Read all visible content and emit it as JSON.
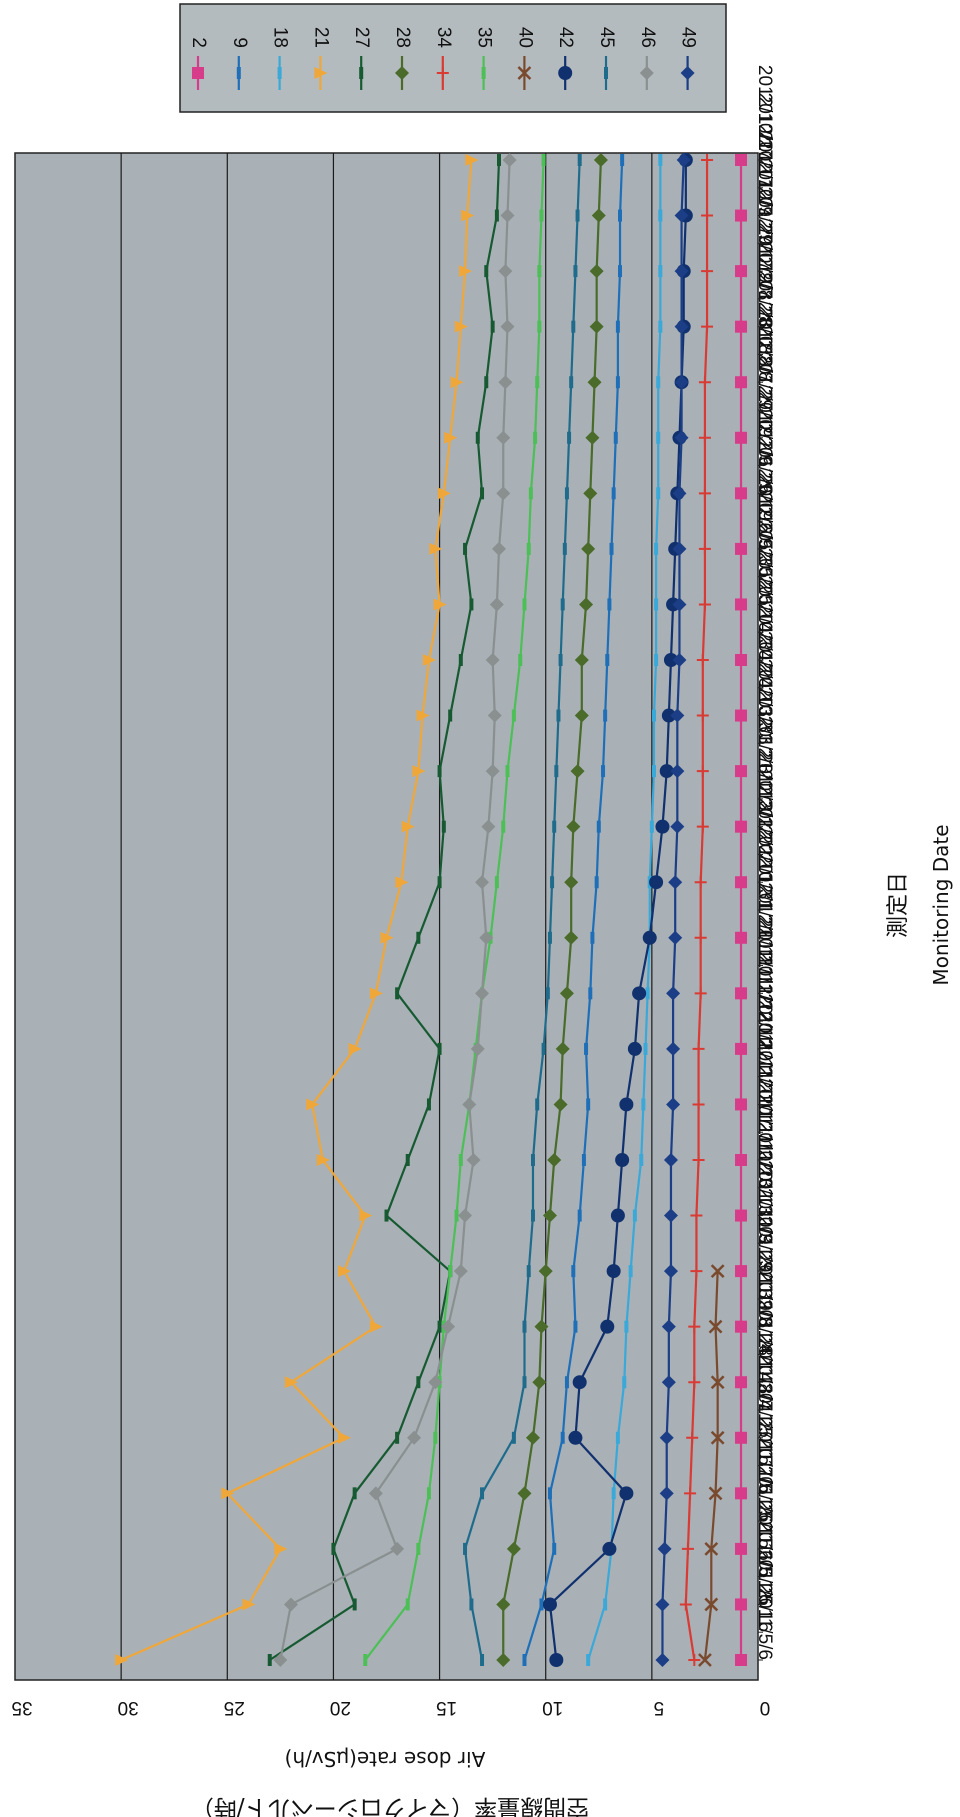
{
  "chart_data": {
    "type": "line",
    "orientation": "rotated-90-clockwise",
    "title": "",
    "ylabel_ja": "空間線量率（マイクロシーベルト/時）",
    "ylabel_en": "Air dose rate(μSv/h)",
    "xlabel_ja": "測定日",
    "xlabel_en": "Monitoring Date",
    "ylim": [
      0,
      35
    ],
    "yticks": [
      0,
      5,
      10,
      15,
      20,
      25,
      30,
      35
    ],
    "grid": true,
    "legend_position": "top",
    "plot_background": "#a9b1b6",
    "x_tick_labels": [
      "2011/5/6",
      "2011/5/16",
      "2011/5/26",
      "2011/6/5",
      "2011/6/15",
      "2011/6/25",
      "2011/7/5",
      "2011/7/15",
      "2011/7/25",
      "2011/8/4",
      "2011/8/14",
      "2011/8/24",
      "2011/9/3",
      "2011/9/13",
      "2011/9/23",
      "2011/10/3",
      "2011/10/13",
      "2011/10/23",
      "2011/11/2",
      "2011/11/12",
      "2011/11/22",
      "2011/12/2",
      "2011/12/12",
      "2011/12/22",
      "2012/1/1",
      "2012/1/11",
      "2012/1/21",
      "2012/1/31",
      "2012/2/10",
      "2012/2/20",
      "2012/3/1",
      "2012/3/11",
      "2012/3/21",
      "2012/3/31",
      "2012/4/10",
      "2012/4/20",
      "2012/4/30",
      "2012/5/10",
      "2012/5/20",
      "2012/5/30",
      "2012/6/9",
      "2012/6/19",
      "2012/6/29",
      "2012/7/9",
      "2012/7/19",
      "2012/7/29",
      "2012/8/8",
      "2012/8/18",
      "2012/8/28",
      "2012/9/7",
      "2012/9/17",
      "2012/9/27",
      "2012/10/7",
      "2012/10/17",
      "2012/10/27"
    ],
    "series_x_index": [
      0,
      2,
      4,
      6,
      8,
      10,
      12,
      14,
      16,
      18,
      20,
      22,
      24,
      26,
      28,
      30,
      32,
      34,
      36,
      38,
      40,
      42,
      44,
      46,
      48,
      50,
      52,
      54
    ],
    "series": [
      {
        "name": "2",
        "color": "#d63c8a",
        "marker": "square",
        "values": [
          0.8,
          0.8,
          0.8,
          0.8,
          0.8,
          0.8,
          0.8,
          0.8,
          0.8,
          0.8,
          0.8,
          0.8,
          0.8,
          0.8,
          0.8,
          0.8,
          0.8,
          0.8,
          0.8,
          0.8,
          0.8,
          0.8,
          0.8,
          0.8,
          0.8,
          0.8,
          0.8,
          0.8
        ]
      },
      {
        "name": "9",
        "color": "#1e6fb8",
        "marker": "dash",
        "values": [
          11,
          10.2,
          9.6,
          9.8,
          9.2,
          9,
          8.6,
          8.7,
          8.4,
          8.2,
          8,
          8.1,
          7.9,
          7.8,
          7.6,
          7.5,
          7.3,
          7.2,
          7.1,
          7,
          6.9,
          6.8,
          6.7,
          6.6,
          6.6,
          6.5,
          6.5,
          6.4
        ]
      },
      {
        "name": "18",
        "color": "#3aa8d8",
        "marker": "dash",
        "values": [
          8,
          7.2,
          6.9,
          6.8,
          6.6,
          6.3,
          6.2,
          6,
          5.8,
          5.5,
          5.4,
          5.3,
          5.2,
          5.1,
          5.1,
          5,
          4.9,
          4.9,
          4.8,
          4.8,
          4.8,
          4.7,
          4.7,
          4.7,
          4.6,
          4.6,
          4.6,
          4.6
        ]
      },
      {
        "name": "21",
        "color": "#f0a73a",
        "marker": "triangle",
        "values": [
          30,
          24,
          22.5,
          25,
          19.5,
          22,
          18,
          19.5,
          18.5,
          20.5,
          21,
          19,
          18,
          17.5,
          16.8,
          16.5,
          16,
          15.8,
          15.5,
          15,
          15.2,
          14.8,
          14.5,
          14.2,
          14,
          13.8,
          13.7,
          13.5
        ]
      },
      {
        "name": "27",
        "color": "#175a32",
        "marker": "dash",
        "values": [
          23,
          19,
          20,
          19,
          17,
          16,
          15,
          14.5,
          17.5,
          16.5,
          15.5,
          15,
          17,
          16,
          15,
          14.8,
          15,
          14.5,
          14,
          13.5,
          13.8,
          13,
          13.2,
          12.8,
          12.5,
          12.8,
          12.3,
          12.2
        ]
      },
      {
        "name": "28",
        "color": "#4a6b2a",
        "marker": "diamond",
        "values": [
          12,
          12,
          11.5,
          11,
          10.6,
          10.3,
          10.2,
          10,
          9.8,
          9.6,
          9.3,
          9.2,
          9,
          8.8,
          8.8,
          8.7,
          8.5,
          8.3,
          8.3,
          8.1,
          8,
          7.9,
          7.8,
          7.7,
          7.6,
          7.6,
          7.5,
          7.4
        ]
      },
      {
        "name": "34",
        "color": "#d93a33",
        "marker": "plus",
        "values": [
          3,
          3.4,
          3.3,
          3.2,
          3.1,
          3,
          3,
          2.9,
          2.9,
          2.8,
          2.8,
          2.8,
          2.7,
          2.7,
          2.7,
          2.6,
          2.6,
          2.6,
          2.6,
          2.5,
          2.5,
          2.5,
          2.5,
          2.5,
          2.4,
          2.4,
          2.4,
          2.4
        ]
      },
      {
        "name": "35",
        "color": "#4cbf56",
        "marker": "dash",
        "values": [
          18.5,
          16.5,
          16,
          15.5,
          15.2,
          15,
          14.8,
          14.5,
          14.2,
          14,
          13.6,
          13.3,
          13,
          12.6,
          12.3,
          12,
          11.8,
          11.5,
          11.2,
          11,
          10.8,
          10.7,
          10.5,
          10.4,
          10.3,
          10.3,
          10.2,
          10.1
        ]
      },
      {
        "name": "40",
        "color": "#7a4a2e",
        "marker": "x",
        "values": [
          2.5,
          2.2,
          2.2,
          2,
          1.9,
          1.9,
          2,
          1.9
        ]
      },
      {
        "name": "42",
        "color": "#10306e",
        "marker": "circle",
        "values": [
          9.5,
          9.8,
          7,
          6.2,
          8.6,
          8.4,
          7.1,
          6.8,
          6.6,
          6.4,
          6.2,
          5.8,
          5.6,
          5.1,
          4.8,
          4.5,
          4.3,
          4.2,
          4.1,
          4,
          3.9,
          3.8,
          3.7,
          3.6,
          3.5,
          3.5,
          3.4,
          3.4
        ]
      },
      {
        "name": "45",
        "color": "#1f6b8c",
        "marker": "dash",
        "values": [
          13,
          13.5,
          13.8,
          13,
          11.5,
          11,
          11,
          10.8,
          10.6,
          10.6,
          10.4,
          10.1,
          9.9,
          9.8,
          9.7,
          9.6,
          9.5,
          9.4,
          9.3,
          9.2,
          9.1,
          9,
          8.9,
          8.8,
          8.7,
          8.6,
          8.5,
          8.4
        ]
      },
      {
        "name": "46",
        "color": "#8a9090",
        "marker": "diamond",
        "values": [
          22.5,
          22,
          17,
          18,
          16.2,
          15.2,
          14.6,
          14,
          13.8,
          13.4,
          13.6,
          13.2,
          13,
          12.8,
          13,
          12.7,
          12.5,
          12.4,
          12.5,
          12.3,
          12.2,
          12,
          12,
          11.9,
          11.8,
          11.9,
          11.8,
          11.7
        ]
      },
      {
        "name": "49",
        "color": "#1b3e86",
        "marker": "diamond",
        "values": [
          4.5,
          4.5,
          4.4,
          4.3,
          4.3,
          4.2,
          4.2,
          4.1,
          4.1,
          4.1,
          4,
          4,
          4,
          3.9,
          3.9,
          3.8,
          3.8,
          3.8,
          3.7,
          3.7,
          3.7,
          3.7,
          3.6,
          3.6,
          3.6,
          3.6,
          3.6,
          3.5
        ]
      }
    ]
  }
}
